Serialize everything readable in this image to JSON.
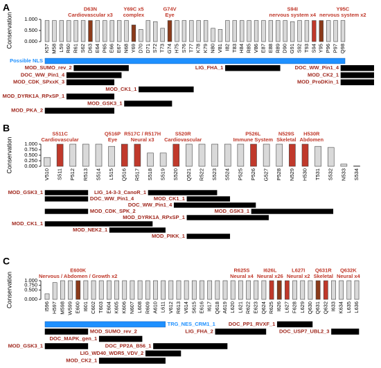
{
  "chart_data": [
    {
      "type": "bar",
      "panel_label": "A",
      "ylabel": "Conservation",
      "categories": [
        "K57",
        "M58",
        "L59",
        "R60",
        "R61",
        "S62",
        "D63",
        "E64",
        "P65",
        "E66",
        "E67",
        "N68",
        "Y69",
        "D70",
        "D71",
        "S72",
        "T73",
        "G74",
        "H75",
        "S76",
        "T77",
        "K78",
        "K79",
        "N80",
        "V81",
        "I82",
        "T83",
        "H84",
        "R85",
        "V86",
        "E87",
        "E88",
        "R89",
        "D90",
        "G91",
        "S92",
        "T93",
        "S94",
        "Y95",
        "P96",
        "P97",
        "Q98"
      ],
      "values": [
        0.95,
        0.95,
        0.95,
        0.95,
        0.95,
        0.95,
        0.95,
        0.95,
        0.95,
        0.95,
        0.95,
        0.95,
        0.75,
        0.55,
        0.95,
        0.9,
        0.6,
        0.95,
        0.95,
        0.95,
        0.95,
        0.95,
        0.95,
        0.6,
        0.55,
        0.95,
        0.95,
        0.95,
        0.95,
        0.95,
        0.95,
        0.95,
        0.95,
        0.95,
        0.9,
        0.95,
        0.95,
        0.95,
        0.95,
        0.95,
        0.95,
        0.95
      ],
      "colors": [
        "#d9d9d9",
        "#d9d9d9",
        "#d9d9d9",
        "#d9d9d9",
        "#d9d9d9",
        "#d9d9d9",
        "#8b3a1a",
        "#d9d9d9",
        "#d9d9d9",
        "#d9d9d9",
        "#d9d9d9",
        "#d9d9d9",
        "#8b3a1a",
        "#d9d9d9",
        "#d9d9d9",
        "#d9d9d9",
        "#d9d9d9",
        "#8b3a1a",
        "#d9d9d9",
        "#d9d9d9",
        "#d9d9d9",
        "#d9d9d9",
        "#d9d9d9",
        "#d9d9d9",
        "#d9d9d9",
        "#d9d9d9",
        "#d9d9d9",
        "#d9d9d9",
        "#d9d9d9",
        "#d9d9d9",
        "#d9d9d9",
        "#d9d9d9",
        "#d9d9d9",
        "#d9d9d9",
        "#d9d9d9",
        "#d9d9d9",
        "#d9d9d9",
        "#c0392b",
        "#8b3a1a",
        "#d9d9d9",
        "#d9d9d9",
        "#d9d9d9"
      ],
      "ylim": [
        0,
        1
      ],
      "yticks": [
        {
          "value": 0,
          "label": "0.000"
        },
        {
          "value": 0.5,
          "label": "0.500"
        },
        {
          "value": 1,
          "label": "1.000"
        }
      ],
      "annotations": [
        {
          "lines": [
            "D63N",
            "Cardiovascular x3"
          ]
        },
        {
          "lines": [
            "Y69C x5",
            "complex"
          ]
        },
        {
          "lines": [
            "G74V",
            "Eye"
          ]
        },
        {
          "lines": [
            "S94I",
            "nervous system x4"
          ]
        },
        {
          "lines": [
            "Y95C",
            "nervous system x2"
          ]
        }
      ],
      "motifs": [
        {
          "name": "Possible NLS",
          "start": 57,
          "end": 98,
          "color": "#1e90ff",
          "label_color": "#1e90ff"
        },
        {
          "name": "MOD_SUMO_rev_2",
          "start": 61,
          "end": 68,
          "color": "#000000",
          "label_color": "#a0281e"
        },
        {
          "name": "DOC_WW_Pin1_4",
          "start": 60,
          "end": 67,
          "color": "#000000",
          "label_color": "#a0281e"
        },
        {
          "name": "DOC_WW_Pin1_4",
          "start": 98,
          "end": 102,
          "color": "#000000",
          "label_color": "#a0281e"
        },
        {
          "name": "LIG_FHA_1",
          "start": 82,
          "end": 89,
          "color": "#000000",
          "label_color": "#a0281e"
        },
        {
          "name": "MOD_CDK_SPxxK_3",
          "start": 60,
          "end": 66,
          "color": "#000000",
          "label_color": "#a0281e"
        },
        {
          "name": "MOD_CK1_1",
          "start": 70,
          "end": 77,
          "color": "#000000",
          "label_color": "#a0281e"
        },
        {
          "name": "MOD_CK2_1",
          "start": 98,
          "end": 102,
          "color": "#000000",
          "label_color": "#a0281e"
        },
        {
          "name": "MOD_DYRK1A_RPxSP_1",
          "start": 60,
          "end": 66,
          "color": "#000000",
          "label_color": "#a0281e"
        },
        {
          "name": "MOD_GSK3_1",
          "start": 68,
          "end": 74,
          "color": "#000000",
          "label_color": "#a0281e"
        },
        {
          "name": "MOD_ProDKin_1",
          "start": 98,
          "end": 102,
          "color": "#000000",
          "label_color": "#a0281e"
        },
        {
          "name": "MOD_PKA_2",
          "start": 57,
          "end": 66,
          "color": "#000000",
          "label_color": "#a0281e"
        }
      ]
    },
    {
      "type": "bar",
      "panel_label": "B",
      "ylabel": "Conservation",
      "categories": [
        "V510",
        "S511",
        "P512",
        "R513",
        "S514",
        "L515",
        "Q516",
        "R517",
        "S518",
        "S519",
        "S520",
        "Q521",
        "R522",
        "S523",
        "S524",
        "P525",
        "P526",
        "G527",
        "P528",
        "N529",
        "H530",
        "T531",
        "S532",
        "N533",
        "S534"
      ],
      "values": [
        0.4,
        1,
        1,
        1,
        1,
        0.9,
        1,
        1,
        0.6,
        0.6,
        1,
        1,
        1,
        1,
        1,
        1,
        1,
        1,
        1,
        1,
        1,
        0.9,
        0.85,
        0.1,
        0.02
      ],
      "colors": [
        "#d9d9d9",
        "#c0392b",
        "#d9d9d9",
        "#d9d9d9",
        "#d9d9d9",
        "#d9d9d9",
        "#c0392b",
        "#c0392b",
        "#d9d9d9",
        "#d9d9d9",
        "#c0392b",
        "#d9d9d9",
        "#d9d9d9",
        "#d9d9d9",
        "#d9d9d9",
        "#d9d9d9",
        "#c0392b",
        "#d9d9d9",
        "#d9d9d9",
        "#c0392b",
        "#c0392b",
        "#d9d9d9",
        "#d9d9d9",
        "#d9d9d9",
        "#d9d9d9"
      ],
      "ylim": [
        0,
        1
      ],
      "yticks": [
        {
          "value": 0,
          "label": "0.000"
        },
        {
          "value": 0.25,
          "label": "0.250"
        },
        {
          "value": 0.5,
          "label": "0.500"
        },
        {
          "value": 0.75,
          "label": "0.750"
        },
        {
          "value": 1,
          "label": "1.000"
        }
      ],
      "annotations": [
        {
          "lines": [
            "S511C",
            "Cardiovascular"
          ]
        },
        {
          "lines": [
            "Q516P",
            "Eye"
          ]
        },
        {
          "lines": [
            "R517C / R517H",
            "Neural x3"
          ]
        },
        {
          "lines": [
            "S520R",
            "Cardiovascular"
          ]
        },
        {
          "lines": [
            "P526L",
            "Immune System"
          ]
        },
        {
          "lines": [
            "N529S",
            "Skeletal"
          ]
        },
        {
          "lines": [
            "H530R",
            "Abdomen"
          ]
        }
      ],
      "motifs": [
        {
          "name": "LIG_14-3-3_CanoR_1",
          "start": 518,
          "end": 523,
          "color": "#000000",
          "label_color": "#a0281e"
        },
        {
          "name": "DOC_WW_Pin1_4",
          "start": 510,
          "end": 513,
          "color": "#000000",
          "label_color": "#a0281e"
        },
        {
          "name": "DOC_WW_Pin1_4",
          "start": 520,
          "end": 526,
          "color": "#000000",
          "label_color": "#a0281e"
        },
        {
          "name": "MOD_CDK_SPK_2",
          "start": 510,
          "end": 513,
          "color": "#000000",
          "label_color": "#a0281e"
        },
        {
          "name": "MOD_DYRK1A_RPxSP_1",
          "start": 521,
          "end": 527,
          "color": "#000000",
          "label_color": "#a0281e"
        },
        {
          "name": "MOD_CK1_1",
          "start": 510,
          "end": 518,
          "color": "#000000",
          "label_color": "#a0281e"
        },
        {
          "name": "MOD_CK1_1",
          "start": 521,
          "end": 524,
          "color": "#000000",
          "label_color": "#a0281e"
        },
        {
          "name": "MOD_GSK3_1",
          "start": 510,
          "end": 513,
          "color": "#000000",
          "label_color": "#a0281e"
        },
        {
          "name": "MOD_GSK3_1",
          "start": 526,
          "end": 532,
          "color": "#000000",
          "label_color": "#a0281e"
        },
        {
          "name": "MOD_NEK2_1",
          "start": 515,
          "end": 519,
          "color": "#000000",
          "label_color": "#a0281e"
        },
        {
          "name": "MOD_PIKK_1",
          "start": 521,
          "end": 524,
          "color": "#000000",
          "label_color": "#a0281e"
        }
      ]
    },
    {
      "type": "bar",
      "panel_label": "C",
      "ylabel": "Conservation",
      "categories": [
        "I596",
        "H597",
        "M598",
        "W599",
        "E600",
        "I601",
        "C602",
        "T603",
        "E604",
        "K605",
        "K606",
        "N607",
        "L608",
        "R609",
        "A610",
        "L611",
        "V612",
        "R613",
        "V614",
        "S615",
        "E616",
        "I617",
        "Q618",
        "A619",
        "L620",
        "L621",
        "R622",
        "E623",
        "Q624",
        "R625",
        "I626",
        "L627",
        "F628",
        "L629",
        "Q630",
        "Q631",
        "Q632",
        "I633",
        "K634",
        "L635",
        "L636"
      ],
      "values": [
        0.3,
        0.9,
        1,
        1,
        1,
        1,
        1,
        1,
        1,
        1,
        1,
        1,
        1,
        1,
        1,
        1,
        1,
        1,
        1,
        1,
        1,
        1,
        1,
        1,
        1,
        1,
        1,
        1,
        1,
        1,
        1,
        1,
        1,
        1,
        1,
        1,
        1,
        1,
        1,
        1,
        1
      ],
      "colors": [
        "#d9d9d9",
        "#d9d9d9",
        "#d9d9d9",
        "#d9d9d9",
        "#8b3a1a",
        "#d9d9d9",
        "#d9d9d9",
        "#d9d9d9",
        "#d9d9d9",
        "#d9d9d9",
        "#d9d9d9",
        "#d9d9d9",
        "#d9d9d9",
        "#d9d9d9",
        "#d9d9d9",
        "#d9d9d9",
        "#d9d9d9",
        "#d9d9d9",
        "#d9d9d9",
        "#d9d9d9",
        "#d9d9d9",
        "#d9d9d9",
        "#d9d9d9",
        "#d9d9d9",
        "#d9d9d9",
        "#d9d9d9",
        "#d9d9d9",
        "#d9d9d9",
        "#d9d9d9",
        "#c0392b",
        "#8b3a1a",
        "#c0392b",
        "#d9d9d9",
        "#d9d9d9",
        "#d9d9d9",
        "#8b3a1a",
        "#c0392b",
        "#d9d9d9",
        "#d9d9d9",
        "#d9d9d9",
        "#d9d9d9"
      ],
      "ylim": [
        0,
        1
      ],
      "yticks": [
        {
          "value": 0,
          "label": "0.000"
        },
        {
          "value": 0.5,
          "label": "0.500"
        },
        {
          "value": 0.75,
          "label": "0.750"
        },
        {
          "value": 1,
          "label": "1.000"
        }
      ],
      "annotations": [
        {
          "lines": [
            "E600K",
            "Nervous / Abdomen / Growth x2"
          ]
        },
        {
          "lines": [
            "I626L",
            "Neural x26"
          ]
        },
        {
          "lines": [
            "R625S",
            "Neural x4"
          ]
        },
        {
          "lines": [
            "L627I",
            "Neural x2"
          ]
        },
        {
          "lines": [
            "Q631R",
            "Skeletal"
          ]
        },
        {
          "lines": [
            "Q632K",
            "Neural x4"
          ]
        }
      ],
      "motifs": [
        {
          "name": "TRG_NES_CRM1_1",
          "start": 596,
          "end": 611,
          "color": "#1e90ff",
          "label_color": "#1e90ff"
        },
        {
          "name": "MOD_SUMO_rev_2",
          "start": 596,
          "end": 601,
          "color": "#000000",
          "label_color": "#a0281e"
        },
        {
          "name": "DOC_PP1_RVXF_1",
          "start": 626,
          "end": 630,
          "color": "#000000",
          "label_color": "#a0281e"
        },
        {
          "name": "DOC_MAPK_gen_1",
          "start": 603,
          "end": 608,
          "color": "#000000",
          "label_color": "#a0281e"
        },
        {
          "name": "DOC_USP7_UBL2_3",
          "start": 633,
          "end": 636,
          "color": "#000000",
          "label_color": "#a0281e"
        },
        {
          "name": "DOC_PP2A_B56_1",
          "start": 610,
          "end": 619,
          "color": "#000000",
          "label_color": "#a0281e"
        },
        {
          "name": "LIG_FHA_2",
          "start": 618,
          "end": 624,
          "color": "#000000",
          "label_color": "#a0281e"
        },
        {
          "name": "LIG_WD40_WDR5_VDV_2",
          "start": 609,
          "end": 613,
          "color": "#000000",
          "label_color": "#a0281e"
        },
        {
          "name": "MOD_GSK3_1",
          "start": 596,
          "end": 601,
          "color": "#000000",
          "label_color": "#a0281e"
        },
        {
          "name": "MOD_CK2_1",
          "start": 603,
          "end": 611,
          "color": "#000000",
          "label_color": "#a0281e"
        }
      ]
    }
  ]
}
